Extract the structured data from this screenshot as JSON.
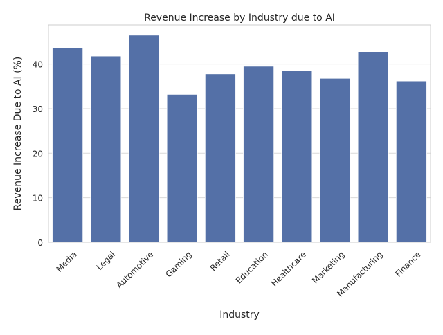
{
  "chart_data": {
    "type": "bar",
    "title": "Revenue Increase by Industry due to AI",
    "xlabel": "Industry",
    "ylabel": "Revenue Increase Due to AI (%)",
    "categories": [
      "Media",
      "Legal",
      "Automotive",
      "Gaming",
      "Retail",
      "Education",
      "Healthcare",
      "Marketing",
      "Manufacturing",
      "Finance"
    ],
    "values": [
      43.7,
      41.8,
      46.5,
      33.2,
      37.8,
      39.5,
      38.5,
      36.8,
      42.8,
      36.2
    ],
    "yticks": [
      0,
      10,
      20,
      30,
      40
    ],
    "ylim": [
      0,
      48.8
    ],
    "grid": true,
    "bar_color": "#5470a7",
    "grid_color": "#d9d9d9"
  }
}
